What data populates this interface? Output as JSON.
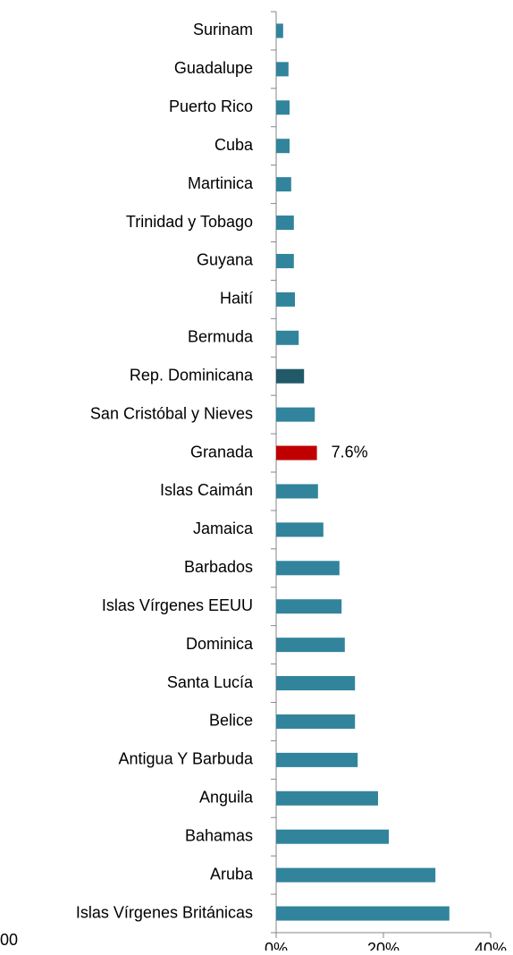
{
  "chart_data": {
    "type": "bar",
    "orientation": "horizontal",
    "categories": [
      "Surinam",
      "Guadalupe",
      "Puerto Rico",
      "Cuba",
      "Martinica",
      "Trinidad y Tobago",
      "Guyana",
      "Haití",
      "Bermuda",
      "Rep. Dominicana",
      "San Cristóbal y Nieves",
      "Granada",
      "Islas Caimán",
      "Jamaica",
      "Barbados",
      "Islas Vírgenes EEUU",
      "Dominica",
      "Santa Lucía",
      "Belice",
      "Antigua Y Barbuda",
      "Anguila",
      "Bahamas",
      "Aruba",
      "Islas Vírgenes Británicas"
    ],
    "values": [
      1.3,
      2.3,
      2.5,
      2.5,
      2.8,
      3.3,
      3.3,
      3.5,
      4.2,
      5.2,
      7.2,
      7.6,
      7.8,
      8.8,
      11.8,
      12.2,
      12.8,
      14.7,
      14.7,
      15.2,
      19.0,
      21.0,
      29.7,
      32.3
    ],
    "value_labels": [
      null,
      null,
      null,
      null,
      null,
      null,
      null,
      null,
      null,
      null,
      null,
      "7.6%",
      null,
      null,
      null,
      null,
      null,
      null,
      null,
      null,
      null,
      null,
      null,
      null
    ],
    "colors": [
      "#31849b",
      "#31849b",
      "#31849b",
      "#31849b",
      "#31849b",
      "#31849b",
      "#31849b",
      "#31849b",
      "#31849b",
      "#215968",
      "#31849b",
      "#c00000",
      "#31849b",
      "#31849b",
      "#31849b",
      "#31849b",
      "#31849b",
      "#31849b",
      "#31849b",
      "#31849b",
      "#31849b",
      "#31849b",
      "#31849b",
      "#31849b"
    ],
    "xlim": [
      0,
      40
    ],
    "xticks": [
      {
        "value": 0,
        "label": "0%"
      },
      {
        "value": 20,
        "label": "20%"
      },
      {
        "value": 40,
        "label": "40%"
      }
    ],
    "annotation": "00"
  }
}
